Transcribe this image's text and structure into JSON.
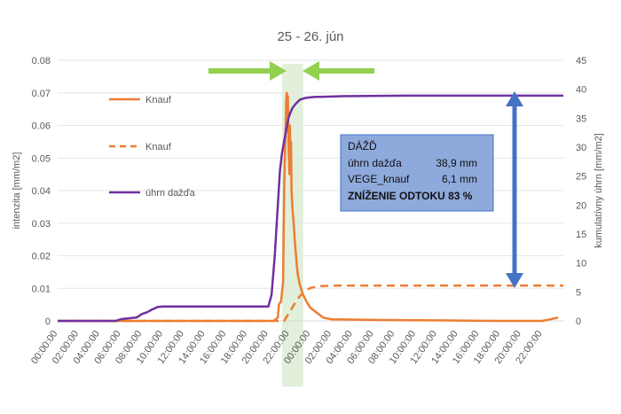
{
  "chart_data": {
    "type": "line",
    "title": "25 - 26. jún",
    "ylabel_left": "intenzita [mm/m2]",
    "ylabel_right": "kumulatívny úhrn [mm/m2]",
    "ylim_left": [
      0,
      0.08
    ],
    "ylim_right": [
      0,
      45
    ],
    "yticks_left": [
      "0",
      "0.01",
      "0.02",
      "0.03",
      "0.04",
      "0.05",
      "0.06",
      "0.07",
      "0.08"
    ],
    "yticks_right": [
      "0",
      "5",
      "10",
      "15",
      "20",
      "25",
      "30",
      "35",
      "40",
      "45"
    ],
    "xticks": [
      "00:00:00",
      "02:00:00",
      "04:00:00",
      "06:00:00",
      "08:00:00",
      "10:00:00",
      "12:00:00",
      "14:00:00",
      "16:00:00",
      "18:00:00",
      "20:00:00",
      "22:00:00",
      "00:00:00",
      "02:00:00",
      "04:00:00",
      "06:00:00",
      "08:00:00",
      "10:00:00",
      "12:00:00",
      "14:00:00",
      "16:00:00",
      "18:00:00",
      "20:00:00",
      "22:00:00"
    ],
    "x_unit": "hours since 25 jún 00:00",
    "series": [
      {
        "name": "Knauf",
        "axis": "left",
        "style": "solid",
        "color": "#ED7D31",
        "x": [
          0,
          20.5,
          20.9,
          21.0,
          21.2,
          21.4,
          21.5,
          21.6,
          21.7,
          21.75,
          21.8,
          21.85,
          21.9,
          22.0,
          22.05,
          22.1,
          22.15,
          22.2,
          22.3,
          22.4,
          22.5,
          22.6,
          22.7,
          22.8,
          23.0,
          23.3,
          23.6,
          24.0,
          24.4,
          24.8,
          25.2,
          26,
          30,
          34,
          38,
          42,
          46,
          47.5
        ],
        "values": [
          0,
          0,
          0.001,
          0.005,
          0.006,
          0.012,
          0.04,
          0.055,
          0.068,
          0.07,
          0.066,
          0.069,
          0.055,
          0.045,
          0.06,
          0.05,
          0.055,
          0.04,
          0.034,
          0.03,
          0.025,
          0.021,
          0.017,
          0.014,
          0.011,
          0.008,
          0.006,
          0.004,
          0.003,
          0.002,
          0.001,
          0.0005,
          0.0003,
          0.0002,
          0.0001,
          0,
          0,
          0.001
        ]
      },
      {
        "name": "Knauf",
        "axis": "right",
        "style": "dashed",
        "color": "#ED7D31",
        "x": [
          0,
          21.5,
          22.0,
          22.5,
          23.0,
          23.5,
          24.0,
          24.5,
          25.0,
          26.0,
          28.0,
          48.0
        ],
        "values": [
          0,
          0,
          1.5,
          3.0,
          4.3,
          5.2,
          5.7,
          5.9,
          6.0,
          6.1,
          6.1,
          6.1
        ]
      },
      {
        "name": "úhrn dažďa",
        "axis": "right",
        "style": "solid",
        "color": "#7030A0",
        "x": [
          0,
          5.5,
          6.0,
          7.5,
          8.0,
          8.5,
          9.0,
          9.5,
          10.0,
          20.0,
          20.3,
          20.6,
          20.9,
          21.1,
          21.3,
          21.5,
          21.7,
          21.9,
          22.1,
          22.3,
          22.6,
          23.0,
          23.5,
          24.0,
          24.5,
          25.0,
          27.0,
          33.0,
          37.0,
          48.0
        ],
        "values": [
          0,
          0,
          0.3,
          0.6,
          1.2,
          1.5,
          2.0,
          2.4,
          2.5,
          2.5,
          4.5,
          11,
          20,
          26,
          29,
          31,
          33,
          35,
          36,
          36.8,
          37.5,
          38.2,
          38.5,
          38.6,
          38.7,
          38.7,
          38.8,
          38.9,
          38.9,
          38.9
        ]
      }
    ],
    "legend": [
      "Knauf",
      "Knauf",
      "úhrn dažďa"
    ],
    "legend_position": "upper-left inside plot",
    "annotation_box": {
      "lines": [
        "DÁŽĎ",
        "úhrn dažďa",
        "38,9 mm",
        "VEGE_knauf",
        "6,1 mm",
        "ZNÍŽENIE ODTOKU 83 %"
      ],
      "fill": "#8EA9DB",
      "border": "#4472C4"
    },
    "highlight_band": {
      "x_from": 21.3,
      "x_to": 23.3,
      "color": "#E2EFDA"
    },
    "arrows": {
      "green": "#92D050",
      "blue": "#4472C4"
    }
  }
}
